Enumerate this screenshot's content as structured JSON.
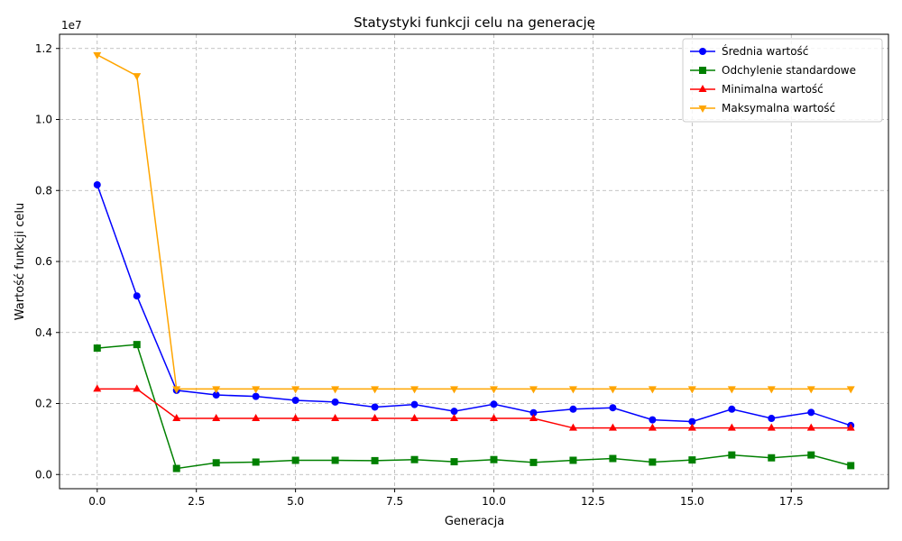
{
  "chart_data": {
    "type": "line",
    "title": "Statystyki funkcji celu na generację",
    "xlabel": "Generacja",
    "ylabel": "Wartość funkcji celu",
    "y_offset_label": "1e7",
    "xlim": [
      -0.95,
      19.95
    ],
    "ylim": [
      -0.04,
      1.24
    ],
    "x_ticks": [
      0.0,
      2.5,
      5.0,
      7.5,
      10.0,
      12.5,
      15.0,
      17.5
    ],
    "x_tick_labels": [
      "0.0",
      "2.5",
      "5.0",
      "7.5",
      "10.0",
      "12.5",
      "15.0",
      "17.5"
    ],
    "y_ticks": [
      0.0,
      0.2,
      0.4,
      0.6,
      0.8,
      1.0,
      1.2
    ],
    "y_tick_labels": [
      "0.0",
      "0.2",
      "0.4",
      "0.6",
      "0.8",
      "1.0",
      "1.2"
    ],
    "grid": true,
    "legend_position": "top-right",
    "x": [
      0,
      1,
      2,
      3,
      4,
      5,
      6,
      7,
      8,
      9,
      10,
      11,
      12,
      13,
      14,
      15,
      16,
      17,
      18,
      19
    ],
    "series": [
      {
        "name": "Średnia wartość",
        "color": "#0000ff",
        "marker": "circle",
        "values": [
          0.816,
          0.503,
          0.237,
          0.224,
          0.22,
          0.209,
          0.204,
          0.19,
          0.197,
          0.178,
          0.198,
          0.174,
          0.184,
          0.188,
          0.154,
          0.149,
          0.184,
          0.158,
          0.175,
          0.138
        ]
      },
      {
        "name": "Odchylenie standardowe",
        "color": "#008000",
        "marker": "square",
        "values": [
          0.356,
          0.366,
          0.017,
          0.033,
          0.035,
          0.04,
          0.04,
          0.039,
          0.042,
          0.036,
          0.042,
          0.034,
          0.04,
          0.045,
          0.035,
          0.041,
          0.055,
          0.047,
          0.055,
          0.025
        ]
      },
      {
        "name": "Minimalna wartość",
        "color": "#ff0000",
        "marker": "triangle-up",
        "values": [
          0.241,
          0.241,
          0.158,
          0.158,
          0.158,
          0.158,
          0.158,
          0.158,
          0.158,
          0.158,
          0.158,
          0.158,
          0.131,
          0.131,
          0.131,
          0.131,
          0.131,
          0.131,
          0.131,
          0.131
        ]
      },
      {
        "name": "Maksymalna wartość",
        "color": "#ffa500",
        "marker": "triangle-down",
        "values": [
          1.182,
          1.123,
          0.241,
          0.241,
          0.241,
          0.241,
          0.241,
          0.241,
          0.241,
          0.241,
          0.241,
          0.241,
          0.241,
          0.241,
          0.241,
          0.241,
          0.241,
          0.241,
          0.241,
          0.241
        ]
      }
    ]
  }
}
